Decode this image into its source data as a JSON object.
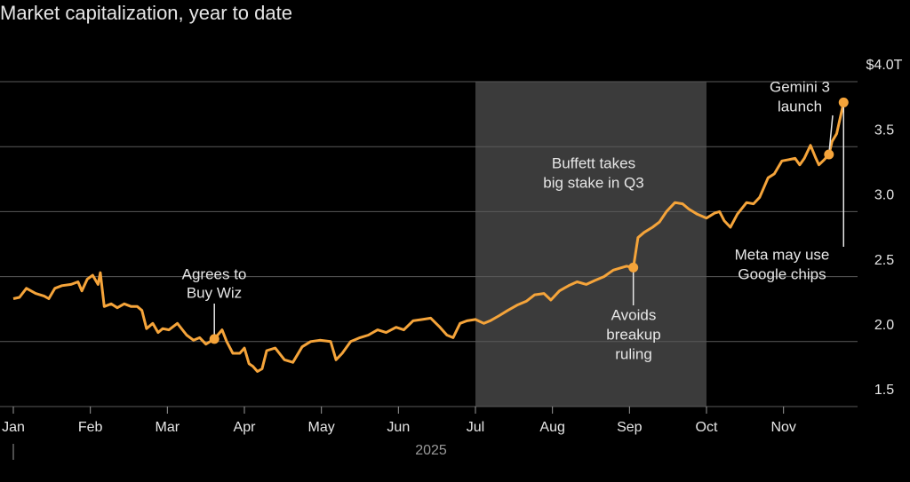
{
  "chart_data": {
    "type": "line",
    "title": "Market capitalization, year to date",
    "x_label": "2025",
    "xlim": [
      0,
      10.95
    ],
    "xticks": [
      {
        "value": 0,
        "label": "Jan"
      },
      {
        "value": 1,
        "label": "Feb"
      },
      {
        "value": 2,
        "label": "Mar"
      },
      {
        "value": 3,
        "label": "Apr"
      },
      {
        "value": 4,
        "label": "May"
      },
      {
        "value": 5,
        "label": "Jun"
      },
      {
        "value": 6,
        "label": "Jul"
      },
      {
        "value": 7,
        "label": "Aug"
      },
      {
        "value": 8,
        "label": "Sep"
      },
      {
        "value": 9,
        "label": "Oct"
      },
      {
        "value": 10,
        "label": "Nov"
      }
    ],
    "ylim": [
      1.5,
      4.0
    ],
    "yticks": [
      1.5,
      {
        "value": 2.0,
        "label": "2.0"
      },
      2.5,
      {
        "value": 3.0,
        "label": "3.0"
      },
      3.5,
      {
        "value": 4.0,
        "label": "$4.0T"
      }
    ],
    "grid": true,
    "shaded_xrange": [
      6,
      9
    ],
    "shade_color": "#3b3b3b",
    "x": [
      0.0,
      0.08,
      0.17,
      0.29,
      0.4,
      0.46,
      0.54,
      0.63,
      0.75,
      0.84,
      0.89,
      0.96,
      1.03,
      1.1,
      1.13,
      1.18,
      1.27,
      1.35,
      1.44,
      1.53,
      1.61,
      1.67,
      1.73,
      1.81,
      1.88,
      1.94,
      2.02,
      2.13,
      2.25,
      2.34,
      2.42,
      2.5,
      2.61,
      2.71,
      2.77,
      2.85,
      2.94,
      3.0,
      3.06,
      3.11,
      3.17,
      3.23,
      3.29,
      3.4,
      3.52,
      3.63,
      3.75,
      3.86,
      3.98,
      4.12,
      4.19,
      4.27,
      4.38,
      4.5,
      4.61,
      4.73,
      4.84,
      4.97,
      5.07,
      5.19,
      5.31,
      5.42,
      5.54,
      5.63,
      5.71,
      5.8,
      5.89,
      6.0,
      6.11,
      6.19,
      6.31,
      6.42,
      6.54,
      6.66,
      6.77,
      6.89,
      6.98,
      7.09,
      7.21,
      7.32,
      7.44,
      7.55,
      7.67,
      7.79,
      7.9,
      7.96,
      8.05,
      8.11,
      8.19,
      8.3,
      8.39,
      8.48,
      8.59,
      8.69,
      8.77,
      8.88,
      9.0,
      9.11,
      9.17,
      9.23,
      9.31,
      9.4,
      9.52,
      9.61,
      9.69,
      9.8,
      9.88,
      9.98,
      10.07,
      10.15,
      10.21,
      10.27,
      10.35,
      10.42,
      10.46,
      10.53,
      10.59,
      10.63,
      10.69,
      10.78
    ],
    "series": [
      {
        "color": "#f5a43a",
        "values": [
          2.33,
          2.34,
          2.41,
          2.37,
          2.35,
          2.33,
          2.41,
          2.43,
          2.44,
          2.46,
          2.39,
          2.48,
          2.51,
          2.44,
          2.53,
          2.27,
          2.29,
          2.26,
          2.29,
          2.27,
          2.27,
          2.24,
          2.1,
          2.14,
          2.07,
          2.1,
          2.09,
          2.14,
          2.05,
          2.01,
          2.03,
          1.98,
          2.02,
          2.09,
          2.0,
          1.91,
          1.91,
          1.95,
          1.83,
          1.81,
          1.77,
          1.79,
          1.93,
          1.95,
          1.86,
          1.84,
          1.96,
          2.0,
          2.01,
          2.0,
          1.86,
          1.91,
          2.0,
          2.03,
          2.05,
          2.09,
          2.07,
          2.11,
          2.09,
          2.16,
          2.17,
          2.18,
          2.11,
          2.05,
          2.03,
          2.14,
          2.16,
          2.17,
          2.14,
          2.16,
          2.2,
          2.24,
          2.28,
          2.31,
          2.36,
          2.37,
          2.32,
          2.39,
          2.43,
          2.46,
          2.44,
          2.47,
          2.5,
          2.55,
          2.57,
          2.58,
          2.57,
          2.8,
          2.84,
          2.88,
          2.92,
          3.0,
          3.07,
          3.06,
          3.02,
          2.98,
          2.95,
          2.99,
          3.0,
          2.93,
          2.88,
          2.98,
          3.07,
          3.06,
          3.11,
          3.26,
          3.29,
          3.39,
          3.4,
          3.41,
          3.36,
          3.41,
          3.51,
          3.41,
          3.36,
          3.4,
          3.44,
          3.54,
          3.6,
          3.84
        ]
      }
    ],
    "annotations": [
      {
        "text": [
          "Agrees to",
          "Buy Wiz"
        ],
        "x": 2.61,
        "y": 2.02
      },
      {
        "text": [
          "Buffett takes",
          "big stake in Q3"
        ]
      },
      {
        "text": [
          "Avoids",
          "breakup",
          "ruling"
        ],
        "x": 8.05,
        "y": 2.57
      },
      {
        "text": [
          "Gemini 3",
          "launch"
        ],
        "x": 10.59,
        "y": 3.44
      },
      {
        "text": [
          "Meta may use",
          "Google chips"
        ],
        "x": 10.78,
        "y": 3.84
      }
    ]
  }
}
